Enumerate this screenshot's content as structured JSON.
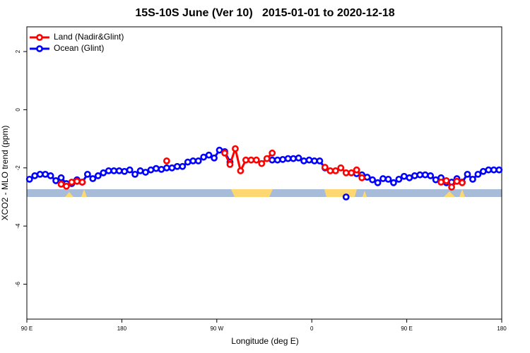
{
  "chart_data": {
    "type": "line",
    "title": "15S-10S June (Ver 10)   2015-01-01 to 2020-12-18",
    "x_label": "Longitude (deg E)",
    "y_label": "XCO2 - MLO trend (ppm)",
    "legend": "top-left",
    "xlim": [
      90,
      540
    ],
    "xticks": [
      {
        "value": 90,
        "label": "90 E"
      },
      {
        "value": 180,
        "label": "180"
      },
      {
        "value": 270,
        "label": "90 W"
      },
      {
        "value": 360,
        "label": "0"
      },
      {
        "value": 450,
        "label": "90 E"
      },
      {
        "value": 540,
        "label": "180"
      }
    ],
    "ylim": [
      -7.2,
      2.85
    ],
    "yticks": [
      2,
      0,
      -2,
      -4,
      -6
    ],
    "x": [
      92.5,
      97.5,
      102.5,
      107.5,
      112.5,
      117.5,
      122.5,
      127.5,
      132.5,
      137.5,
      142.5,
      147.5,
      152.5,
      157.5,
      162.5,
      167.5,
      172.5,
      177.5,
      182.5,
      187.5,
      192.5,
      197.5,
      202.5,
      207.5,
      212.5,
      217.5,
      222.5,
      227.5,
      232.5,
      237.5,
      242.5,
      247.5,
      252.5,
      257.5,
      262.5,
      267.5,
      272.5,
      277.5,
      282.5,
      287.5,
      292.5,
      297.5,
      302.5,
      307.5,
      312.5,
      317.5,
      322.5,
      327.5,
      332.5,
      337.5,
      342.5,
      347.5,
      352.5,
      357.5,
      362.5,
      367.5,
      372.5,
      377.5,
      382.5,
      387.5,
      392.5,
      397.5,
      402.5,
      407.5,
      412.5,
      417.5,
      422.5,
      427.5,
      432.5,
      437.5,
      442.5,
      447.5,
      452.5,
      457.5,
      462.5,
      467.5,
      472.5,
      477.5,
      482.5,
      487.5,
      492.5,
      497.5,
      502.5,
      507.5,
      512.5,
      517.5,
      522.5,
      527.5,
      532.5,
      537.5
    ],
    "series": [
      {
        "name": "Ocean (Glint)",
        "color": "#0000ff",
        "values": [
          -2.39,
          -2.27,
          -2.22,
          -2.22,
          -2.27,
          -2.44,
          -2.34,
          -2.54,
          -2.54,
          -2.41,
          -2.49,
          -2.22,
          -2.37,
          -2.27,
          -2.17,
          -2.1,
          -2.1,
          -2.1,
          -2.12,
          -2.07,
          -2.22,
          -2.1,
          -2.15,
          -2.07,
          -2.02,
          -2.05,
          -2.0,
          -2.0,
          -1.95,
          -1.95,
          -1.8,
          -1.76,
          -1.76,
          -1.63,
          -1.56,
          -1.66,
          -1.39,
          -1.44,
          -1.8,
          null,
          null,
          null,
          null,
          null,
          null,
          null,
          -1.73,
          -1.73,
          -1.71,
          -1.68,
          -1.68,
          -1.66,
          -1.76,
          -1.73,
          -1.76,
          -1.76,
          -2.0,
          null,
          null,
          null,
          -3.0,
          null,
          -2.2,
          -2.24,
          -2.32,
          -2.41,
          -2.51,
          -2.37,
          -2.39,
          -2.51,
          -2.39,
          -2.29,
          -2.34,
          -2.27,
          -2.24,
          -2.24,
          -2.27,
          -2.41,
          -2.34,
          -2.51,
          -2.49,
          -2.37,
          -2.49,
          -2.22,
          -2.39,
          -2.22,
          -2.12,
          -2.07,
          -2.07,
          -2.07
        ]
      },
      {
        "name": "Land (Nadir&Glint)",
        "color": "#ff0000",
        "values": [
          null,
          null,
          null,
          null,
          null,
          null,
          -2.56,
          -2.63,
          -2.49,
          -2.46,
          -2.49,
          null,
          null,
          null,
          null,
          null,
          null,
          null,
          null,
          null,
          null,
          null,
          null,
          null,
          null,
          null,
          -1.76,
          null,
          null,
          null,
          null,
          null,
          null,
          null,
          null,
          null,
          null,
          -1.49,
          -1.88,
          -1.34,
          -2.1,
          -1.73,
          -1.73,
          -1.73,
          -1.85,
          -1.68,
          -1.49,
          null,
          null,
          null,
          null,
          null,
          null,
          null,
          null,
          null,
          -1.98,
          -2.1,
          -2.1,
          -2.0,
          -2.17,
          -2.17,
          -2.07,
          -2.34,
          null,
          null,
          null,
          null,
          null,
          null,
          null,
          null,
          null,
          null,
          null,
          null,
          null,
          null,
          -2.49,
          -2.44,
          -2.66,
          -2.46,
          -2.51,
          null,
          null,
          null,
          null,
          null,
          null,
          null
        ]
      }
    ]
  }
}
